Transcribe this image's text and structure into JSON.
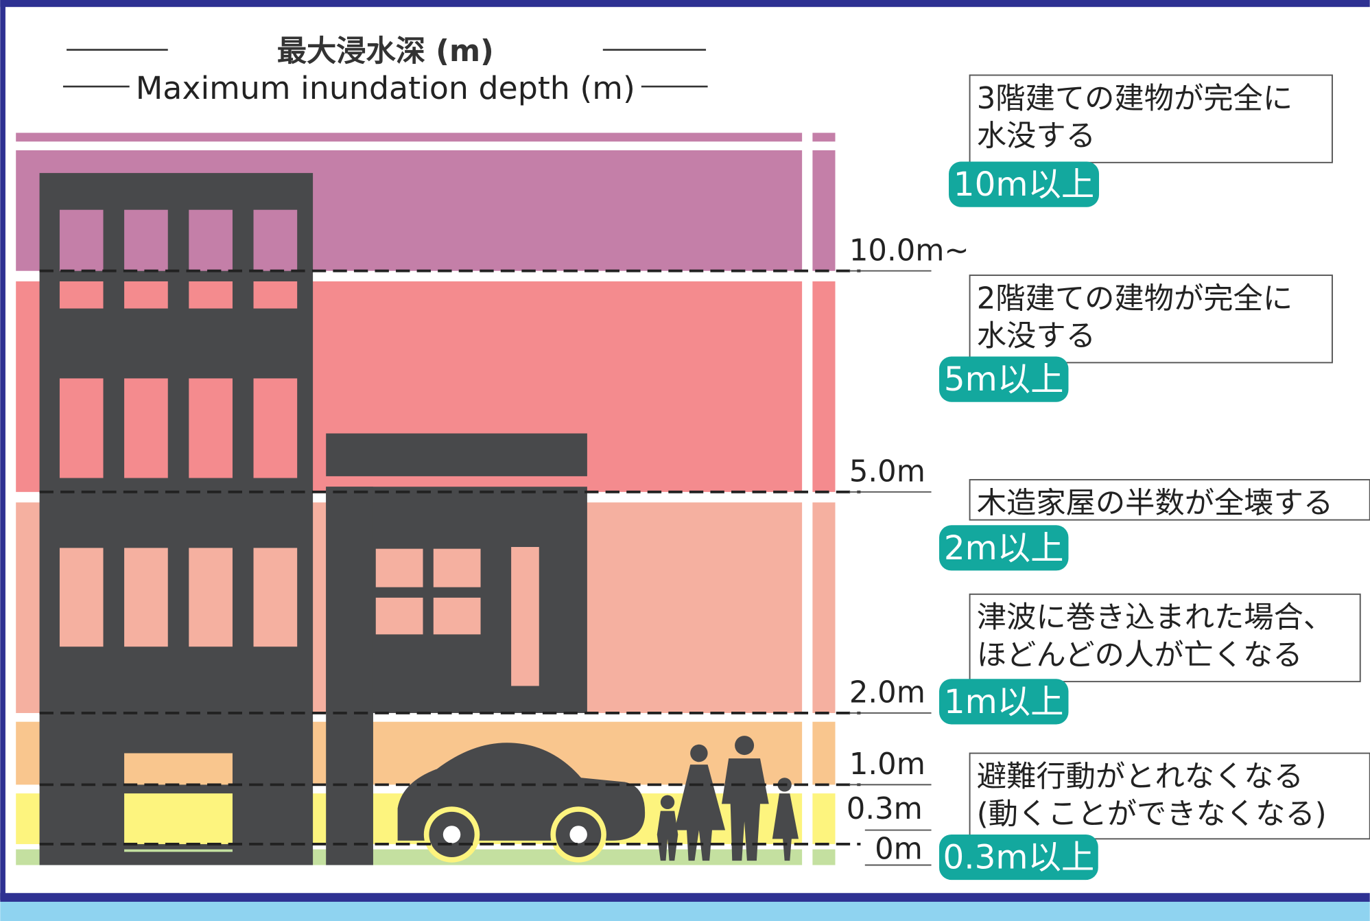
{
  "title": {
    "ja": "最大浸水深 (m)",
    "en": "Maximum inundation depth (m)"
  },
  "depth_marks": [
    "10.0m~",
    "5.0m",
    "2.0m",
    "1.0m",
    "0.3m",
    "0m"
  ],
  "levels": [
    {
      "badge": "10m以上",
      "description": [
        "3階建ての建物が完全に",
        "水没する"
      ]
    },
    {
      "badge": "5m以上",
      "description": [
        "2階建ての建物が完全に",
        "水没する"
      ]
    },
    {
      "badge": "2m以上",
      "description": [
        "木造家屋の半数が全壊する"
      ]
    },
    {
      "badge": "1m以上",
      "description": [
        "津波に巻き込まれた場合、",
        "ほどんどの人が亡くなる"
      ]
    },
    {
      "badge": "0.3m以上",
      "description": [
        "避難行動がとれなくなる",
        "(動くことができなくなる)"
      ]
    }
  ]
}
